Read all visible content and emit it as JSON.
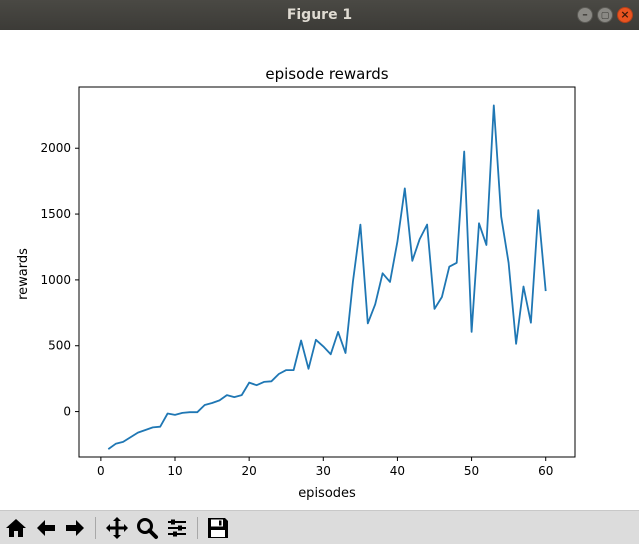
{
  "window": {
    "title": "Figure 1"
  },
  "toolbar": {
    "buttons": [
      {
        "name": "home-icon"
      },
      {
        "name": "back-arrow-icon"
      },
      {
        "name": "forward-arrow-icon"
      },
      {
        "name": "pan-icon"
      },
      {
        "name": "zoom-icon"
      },
      {
        "name": "configure-subplots-icon"
      },
      {
        "name": "save-icon"
      }
    ]
  },
  "chart_data": {
    "type": "line",
    "title": "episode rewards",
    "xlabel": "episodes",
    "ylabel": "rewards",
    "xlim": [
      -2.95,
      63.95
    ],
    "ylim": [
      -345,
      2465
    ],
    "xticks": [
      0,
      10,
      20,
      30,
      40,
      50,
      60
    ],
    "yticks": [
      0,
      500,
      1000,
      1500,
      2000
    ],
    "grid": false,
    "legend": "none",
    "color": "#1f77b4",
    "series": [
      {
        "x": [
          1,
          2,
          3,
          4,
          5,
          6,
          7,
          8,
          9,
          10,
          11,
          12,
          13,
          14,
          15,
          16,
          17,
          18,
          19,
          20,
          21,
          22,
          23,
          24,
          25,
          26,
          27,
          28,
          29,
          30,
          31,
          32,
          33,
          34,
          35,
          36,
          37,
          38,
          39,
          40,
          41,
          42,
          43,
          44,
          45,
          46,
          47,
          48,
          49,
          50,
          51,
          52,
          53,
          54,
          55,
          56,
          57,
          58,
          59,
          60
        ],
        "values": [
          -285,
          -245,
          -230,
          -195,
          -160,
          -140,
          -120,
          -115,
          -15,
          -25,
          -10,
          -5,
          -5,
          50,
          65,
          85,
          125,
          110,
          125,
          220,
          200,
          225,
          230,
          285,
          315,
          315,
          540,
          325,
          545,
          495,
          435,
          605,
          445,
          985,
          1420,
          670,
          815,
          1050,
          985,
          1290,
          1695,
          1145,
          1310,
          1420,
          780,
          870,
          1100,
          1130,
          1975,
          605,
          1430,
          1265,
          2325,
          1480,
          1130,
          515,
          950,
          675,
          1530,
          915
        ]
      }
    ]
  }
}
